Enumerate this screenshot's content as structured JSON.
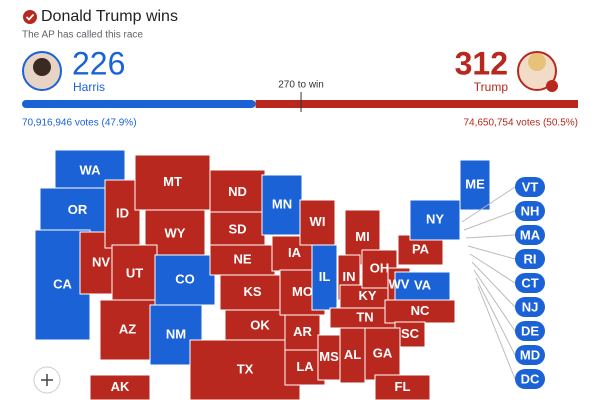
{
  "header": {
    "title": "Donald Trump wins",
    "subtitle": "The AP has called this race"
  },
  "candidates": [
    {
      "name": "Harris",
      "electoral_votes": 226,
      "votes": "70,916,946 votes (47.9%)",
      "color": "#1a62d6"
    },
    {
      "name": "Trump",
      "electoral_votes": 312,
      "votes": "74,650,754 votes (50.5%)",
      "color": "#b8281e"
    }
  ],
  "threshold": {
    "value": 270,
    "label": "270 to win"
  },
  "states": [
    {
      "abbr": "WA",
      "color": "#1a62d6"
    },
    {
      "abbr": "OR",
      "color": "#1a62d6"
    },
    {
      "abbr": "CA",
      "color": "#1a62d6"
    },
    {
      "abbr": "NV",
      "color": "#b8281e"
    },
    {
      "abbr": "ID",
      "color": "#b8281e"
    },
    {
      "abbr": "MT",
      "color": "#b8281e"
    },
    {
      "abbr": "WY",
      "color": "#b8281e"
    },
    {
      "abbr": "UT",
      "color": "#b8281e"
    },
    {
      "abbr": "AZ",
      "color": "#b8281e"
    },
    {
      "abbr": "CO",
      "color": "#1a62d6"
    },
    {
      "abbr": "NM",
      "color": "#1a62d6"
    },
    {
      "abbr": "ND",
      "color": "#b8281e"
    },
    {
      "abbr": "SD",
      "color": "#b8281e"
    },
    {
      "abbr": "NE",
      "color": "#b8281e"
    },
    {
      "abbr": "KS",
      "color": "#b8281e"
    },
    {
      "abbr": "OK",
      "color": "#b8281e"
    },
    {
      "abbr": "TX",
      "color": "#b8281e"
    },
    {
      "abbr": "MN",
      "color": "#1a62d6"
    },
    {
      "abbr": "IA",
      "color": "#b8281e"
    },
    {
      "abbr": "MO",
      "color": "#b8281e"
    },
    {
      "abbr": "AR",
      "color": "#b8281e"
    },
    {
      "abbr": "LA",
      "color": "#b8281e"
    },
    {
      "abbr": "WI",
      "color": "#b8281e"
    },
    {
      "abbr": "IL",
      "color": "#1a62d6"
    },
    {
      "abbr": "MS",
      "color": "#b8281e"
    },
    {
      "abbr": "MI",
      "color": "#b8281e"
    },
    {
      "abbr": "IN",
      "color": "#b8281e"
    },
    {
      "abbr": "KY",
      "color": "#b8281e"
    },
    {
      "abbr": "TN",
      "color": "#b8281e"
    },
    {
      "abbr": "AL",
      "color": "#b8281e"
    },
    {
      "abbr": "OH",
      "color": "#b8281e"
    },
    {
      "abbr": "WV",
      "color": "#b8281e"
    },
    {
      "abbr": "VA",
      "color": "#1a62d6"
    },
    {
      "abbr": "NC",
      "color": "#b8281e"
    },
    {
      "abbr": "SC",
      "color": "#b8281e"
    },
    {
      "abbr": "GA",
      "color": "#b8281e"
    },
    {
      "abbr": "FL",
      "color": "#b8281e"
    },
    {
      "abbr": "PA",
      "color": "#b8281e"
    },
    {
      "abbr": "NY",
      "color": "#1a62d6"
    },
    {
      "abbr": "ME",
      "color": "#1a62d6"
    },
    {
      "abbr": "AK",
      "color": "#b8281e"
    }
  ],
  "callouts": [
    {
      "abbr": "VT",
      "color": "#1a62d6"
    },
    {
      "abbr": "NH",
      "color": "#1a62d6"
    },
    {
      "abbr": "MA",
      "color": "#1a62d6"
    },
    {
      "abbr": "RI",
      "color": "#1a62d6"
    },
    {
      "abbr": "CT",
      "color": "#1a62d6"
    },
    {
      "abbr": "NJ",
      "color": "#1a62d6"
    },
    {
      "abbr": "DE",
      "color": "#1a62d6"
    },
    {
      "abbr": "MD",
      "color": "#1a62d6"
    },
    {
      "abbr": "DC",
      "color": "#1a62d6"
    }
  ]
}
